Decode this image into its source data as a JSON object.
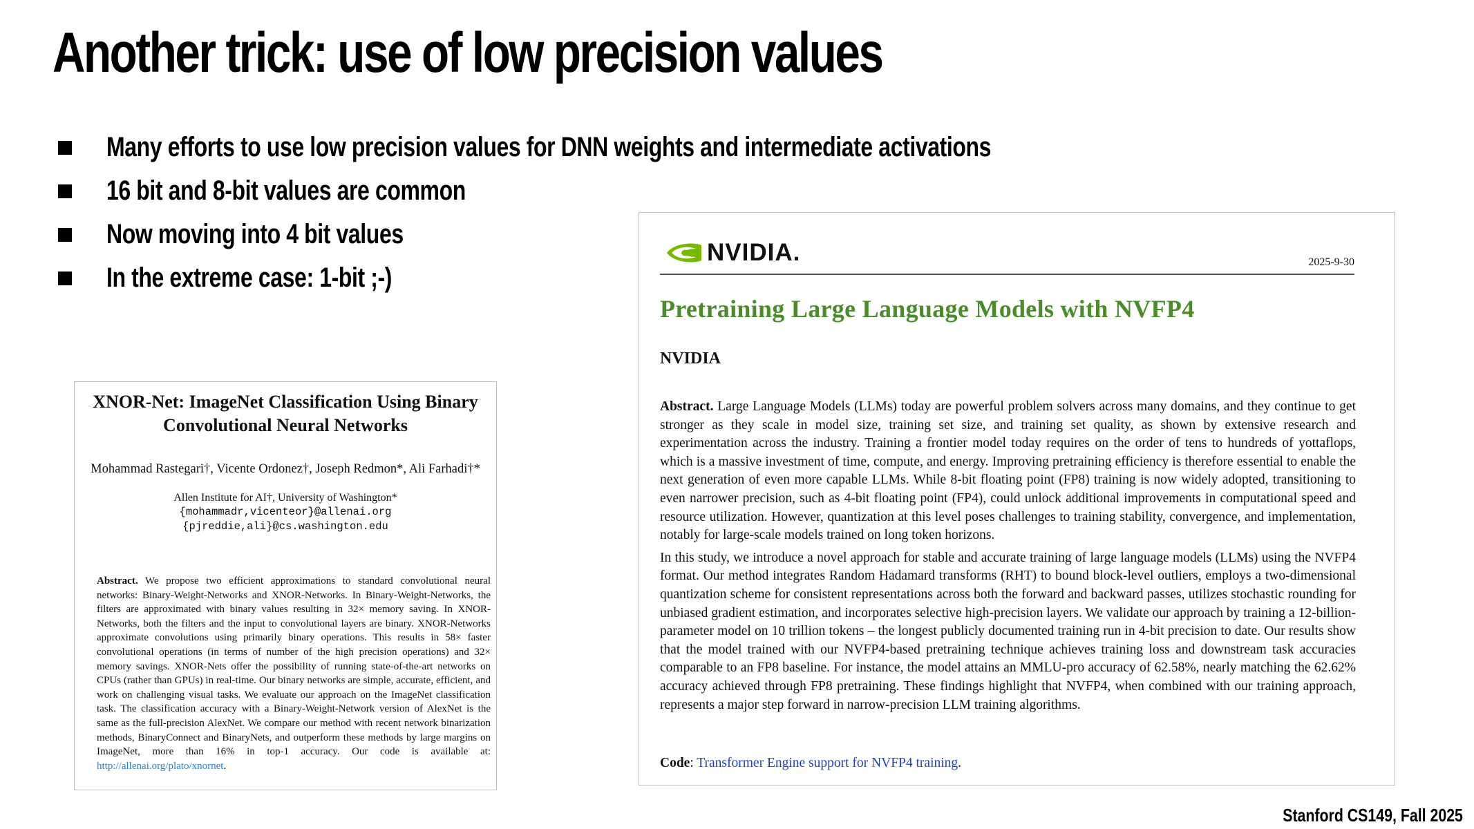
{
  "slide": {
    "title": "Another trick: use of low precision values",
    "bullets": [
      "Many efforts to use low precision values for DNN weights and intermediate activations",
      "16 bit and 8-bit values are common",
      "Now moving into 4 bit values",
      "In the extreme case: 1-bit ;-)"
    ],
    "footer": "Stanford CS149, Fall 2025"
  },
  "xnor_paper": {
    "title_line1": "XNOR-Net: ImageNet Classification Using Binary",
    "title_line2": "Convolutional Neural Networks",
    "authors": "Mohammad Rastegari†, Vicente Ordonez†, Joseph Redmon*, Ali Farhadi†*",
    "affiliation": "Allen Institute for AI†, University of Washington*",
    "email1": "{mohammadr,vicenteor}@allenai.org",
    "email2": "{pjreddie,ali}@cs.washington.edu",
    "abstract_label": "Abstract.",
    "abstract_text": "We propose two efficient approximations to standard convolutional neural networks: Binary-Weight-Networks and XNOR-Networks. In Binary-Weight-Networks, the filters are approximated with binary values resulting in 32× memory saving. In XNOR-Networks, both the filters and the input to convolutional layers are binary. XNOR-Networks approximate convolutions using primarily binary operations. This results in 58× faster convolutional operations (in terms of number of the high precision operations) and 32× memory savings. XNOR-Nets offer the possibility of running state-of-the-art networks on CPUs (rather than GPUs) in real-time. Our binary networks are simple, accurate, efficient, and work on challenging visual tasks. We evaluate our approach on the ImageNet classification task. The classification accuracy with a Binary-Weight-Network version of AlexNet is the same as the full-precision AlexNet. We compare our method with recent network binarization methods, BinaryConnect and BinaryNets, and outperform these methods by large margins on ImageNet, more than 16% in top-1 accuracy. Our code is available at:",
    "link": "http://allenai.org/plato/xnornet",
    "end": "."
  },
  "nvfp4_paper": {
    "logo_text": "NVIDIA.",
    "date": "2025-9-30",
    "title": "Pretraining Large Language Models with NVFP4",
    "org": "NVIDIA",
    "abstract_label": "Abstract.",
    "abstract_text": "Large Language Models (LLMs) today are powerful problem solvers across many domains, and they continue to get stronger as they scale in model size, training set size, and training set quality, as shown by extensive research and experimentation across the industry. Training a frontier model today requires on the order of tens to hundreds of yottaflops, which is a massive investment of time, compute, and energy. Improving pretraining efficiency is therefore essential to enable the next generation of even more capable LLMs. While 8-bit floating point (FP8) training is now widely adopted, transitioning to even narrower precision, such as 4-bit floating point (FP4), could unlock additional improvements in computational speed and resource utilization. However, quantization at this level poses challenges to training stability, convergence, and implementation, notably for large-scale models trained on long token horizons.",
    "study_text": "In this study, we introduce a novel approach for stable and accurate training of large language models (LLMs) using the NVFP4 format. Our method integrates Random Hadamard transforms (RHT) to bound block-level outliers, employs a two-dimensional quantization scheme for consistent representations across both the forward and backward passes, utilizes stochastic rounding for unbiased gradient estimation, and incorporates selective high-precision layers. We validate our approach by training a 12-billion-parameter model on 10 trillion tokens – the longest publicly documented training run in 4-bit precision to date. Our results show that the model trained with our NVFP4-based pretraining technique achieves training loss and downstream task accuracies comparable to an FP8 baseline. For instance, the model attains an MMLU-pro accuracy of 62.58%, nearly matching the 62.62% accuracy achieved through FP8 pretraining. These findings highlight that NVFP4, when combined with our training approach, represents a major step forward in narrow-precision LLM training algorithms.",
    "code_label": "Code",
    "code_sep": ":",
    "code_link": "Transformer Engine support for NVFP4 training",
    "code_end": "."
  },
  "colors": {
    "nvidia_green": "#76b900",
    "title_green": "#4a8c2a",
    "link_blue": "#1f3fc4"
  }
}
